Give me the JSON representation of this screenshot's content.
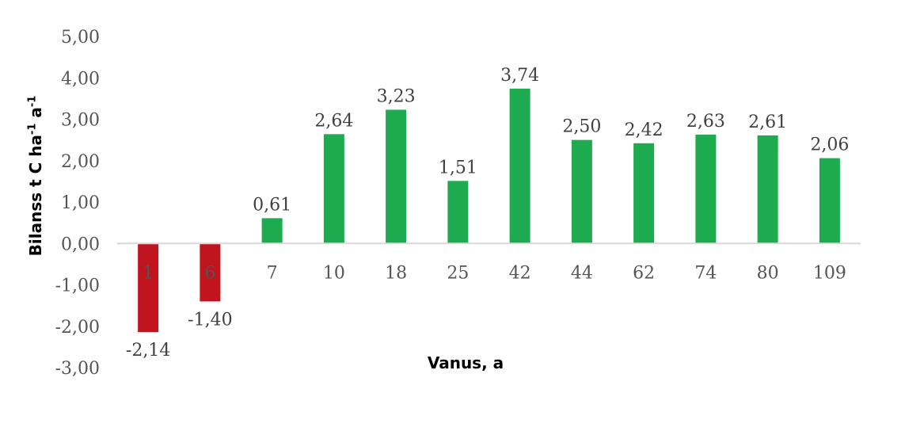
{
  "chart_data": {
    "type": "bar",
    "categories": [
      "1",
      "6",
      "7",
      "10",
      "18",
      "25",
      "42",
      "44",
      "62",
      "74",
      "80",
      "109"
    ],
    "values": [
      -2.14,
      -1.4,
      0.61,
      2.64,
      3.23,
      1.51,
      3.74,
      2.5,
      2.42,
      2.63,
      2.61,
      2.06
    ],
    "data_labels": [
      "-2,14",
      "-1,40",
      "0,61",
      "2,64",
      "3,23",
      "1,51",
      "3,74",
      "2,50",
      "2,42",
      "2,63",
      "2,61",
      "2,06"
    ],
    "yticks": [
      "5,00",
      "4,00",
      "3,00",
      "2,00",
      "1,00",
      "0,00",
      "-1,00",
      "-2,00",
      "-3,00"
    ],
    "ylim": [
      -3,
      5
    ],
    "xlabel": "Vanus, a",
    "ylabel": {
      "main": "Bilanss t C ha",
      "exp1": "-1",
      "mid": " a",
      "exp2": "-1"
    },
    "grid": false,
    "legend": "none",
    "colors": {
      "positive": "#1eab4f",
      "negative": "#c0141e",
      "axis": "#d9d9d9"
    }
  }
}
